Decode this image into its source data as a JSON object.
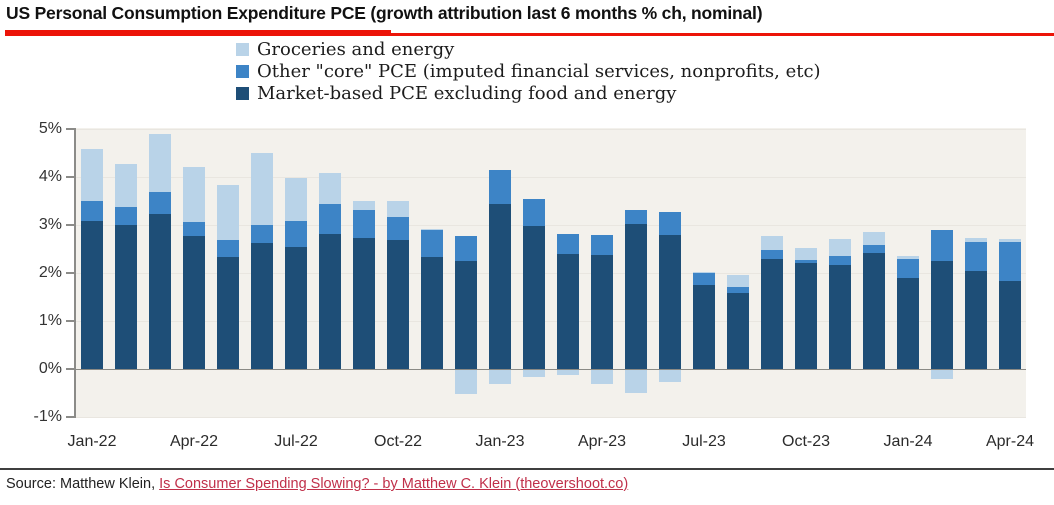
{
  "title": "US Personal Consumption Expenditure PCE (growth attribution last 6 months % ch, nominal)",
  "source": {
    "prefix": "Source: Matthew Klein, ",
    "link_text": "Is Consumer Spending Slowing? - by Matthew C. Klein (theovershoot.co)"
  },
  "colors": {
    "accent_red": "#ec1408",
    "link_red": "#c0304a",
    "plot_bg": "#f3f1ec",
    "axis_gray": "#8b8b88",
    "gridline": "#e9e6e0",
    "groceries": "#b9d3e8",
    "other_core": "#3d84c6",
    "market_based": "#1e4e77"
  },
  "legend": {
    "items": [
      {
        "label": "Groceries and energy",
        "color": "#b9d3e8"
      },
      {
        "label": "Other \"core\" PCE (imputed financial services, nonprofits, etc)",
        "color": "#3d84c6"
      },
      {
        "label": "Market-based PCE excluding food and energy",
        "color": "#1e4e77"
      }
    ]
  },
  "chart_data": {
    "type": "bar",
    "stacked": true,
    "title": "US Personal Consumption Expenditure PCE (growth attribution last 6 months % ch, nominal)",
    "xlabel": "",
    "ylabel": "",
    "ylim": [
      -1,
      5
    ],
    "grid": "faint horizontal",
    "legend_position": "top",
    "categories": [
      "Jan-22",
      "Feb-22",
      "Mar-22",
      "Apr-22",
      "May-22",
      "Jun-22",
      "Jul-22",
      "Aug-22",
      "Sep-22",
      "Oct-22",
      "Nov-22",
      "Dec-22",
      "Jan-23",
      "Feb-23",
      "Mar-23",
      "Apr-23",
      "May-23",
      "Jun-23",
      "Jul-23",
      "Aug-23",
      "Sep-23",
      "Oct-23",
      "Nov-23",
      "Dec-23",
      "Jan-24",
      "Feb-24",
      "Mar-24",
      "Apr-24"
    ],
    "series": [
      {
        "name": "Groceries and energy",
        "color": "#b9d3e8",
        "values": [
          1.07,
          0.9,
          1.22,
          1.14,
          1.16,
          1.48,
          0.89,
          0.65,
          0.2,
          0.34,
          0.02,
          -0.5,
          -0.3,
          -0.15,
          -0.1,
          -0.3,
          -0.47,
          -0.25,
          0.02,
          0.26,
          0.3,
          0.26,
          0.34,
          0.28,
          0.05,
          -0.18,
          0.07,
          0.06
        ]
      },
      {
        "name": "Other \"core\" PCE (imputed financial services, nonprofits, etc)",
        "color": "#3d84c6",
        "values": [
          0.43,
          0.39,
          0.45,
          0.28,
          0.34,
          0.39,
          0.54,
          0.63,
          0.58,
          0.48,
          0.57,
          0.53,
          0.7,
          0.57,
          0.42,
          0.43,
          0.29,
          0.47,
          0.24,
          0.12,
          0.17,
          0.07,
          0.19,
          0.17,
          0.4,
          0.66,
          0.6,
          0.81
        ]
      },
      {
        "name": "Market-based PCE excluding food and energy",
        "color": "#1e4e77",
        "values": [
          3.08,
          2.99,
          3.23,
          2.78,
          2.34,
          2.62,
          2.55,
          2.81,
          2.73,
          2.69,
          2.33,
          2.25,
          3.44,
          2.97,
          2.39,
          2.37,
          3.03,
          2.8,
          1.76,
          1.58,
          2.3,
          2.2,
          2.17,
          2.41,
          1.9,
          2.24,
          2.05,
          1.84
        ]
      }
    ],
    "y_ticks": [
      {
        "label": "5%",
        "value": 5
      },
      {
        "label": "4%",
        "value": 4
      },
      {
        "label": "3%",
        "value": 3
      },
      {
        "label": "2%",
        "value": 2
      },
      {
        "label": "1%",
        "value": 1
      },
      {
        "label": "0%",
        "value": 0
      },
      {
        "label": "-1%",
        "value": -1
      }
    ],
    "x_tick_labels": [
      {
        "label": "Jan-22",
        "index": 0
      },
      {
        "label": "Apr-22",
        "index": 3
      },
      {
        "label": "Jul-22",
        "index": 6
      },
      {
        "label": "Oct-22",
        "index": 9
      },
      {
        "label": "Jan-23",
        "index": 12
      },
      {
        "label": "Apr-23",
        "index": 15
      },
      {
        "label": "Jul-23",
        "index": 18
      },
      {
        "label": "Oct-23",
        "index": 21
      },
      {
        "label": "Jan-24",
        "index": 24
      },
      {
        "label": "Apr-24",
        "index": 27
      }
    ]
  }
}
